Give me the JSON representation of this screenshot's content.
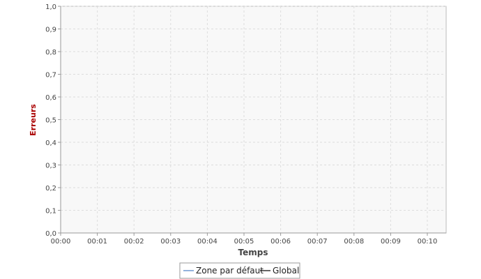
{
  "chart_data": {
    "type": "line",
    "title": "",
    "xlabel": "Temps",
    "ylabel": "Erreurs",
    "x_ticks": [
      "00:00",
      "00:01",
      "00:02",
      "00:03",
      "00:04",
      "00:05",
      "00:06",
      "00:07",
      "00:08",
      "00:09",
      "00:10"
    ],
    "y_ticks": [
      "0,0",
      "0,1",
      "0,2",
      "0,3",
      "0,4",
      "0,5",
      "0,6",
      "0,7",
      "0,8",
      "0,9",
      "1,0"
    ],
    "ylim": [
      0,
      1
    ],
    "grid": true,
    "legend_position": "bottom",
    "series": [
      {
        "name": "Zone par défaut",
        "color": "#4a7ec4",
        "values": []
      },
      {
        "name": "Global",
        "color": "#000000",
        "values": []
      }
    ],
    "colors": {
      "ylabel": "#aa0000",
      "plot_background": "#f8f8f8",
      "grid": "#dddddd",
      "axis": "#999999"
    }
  }
}
